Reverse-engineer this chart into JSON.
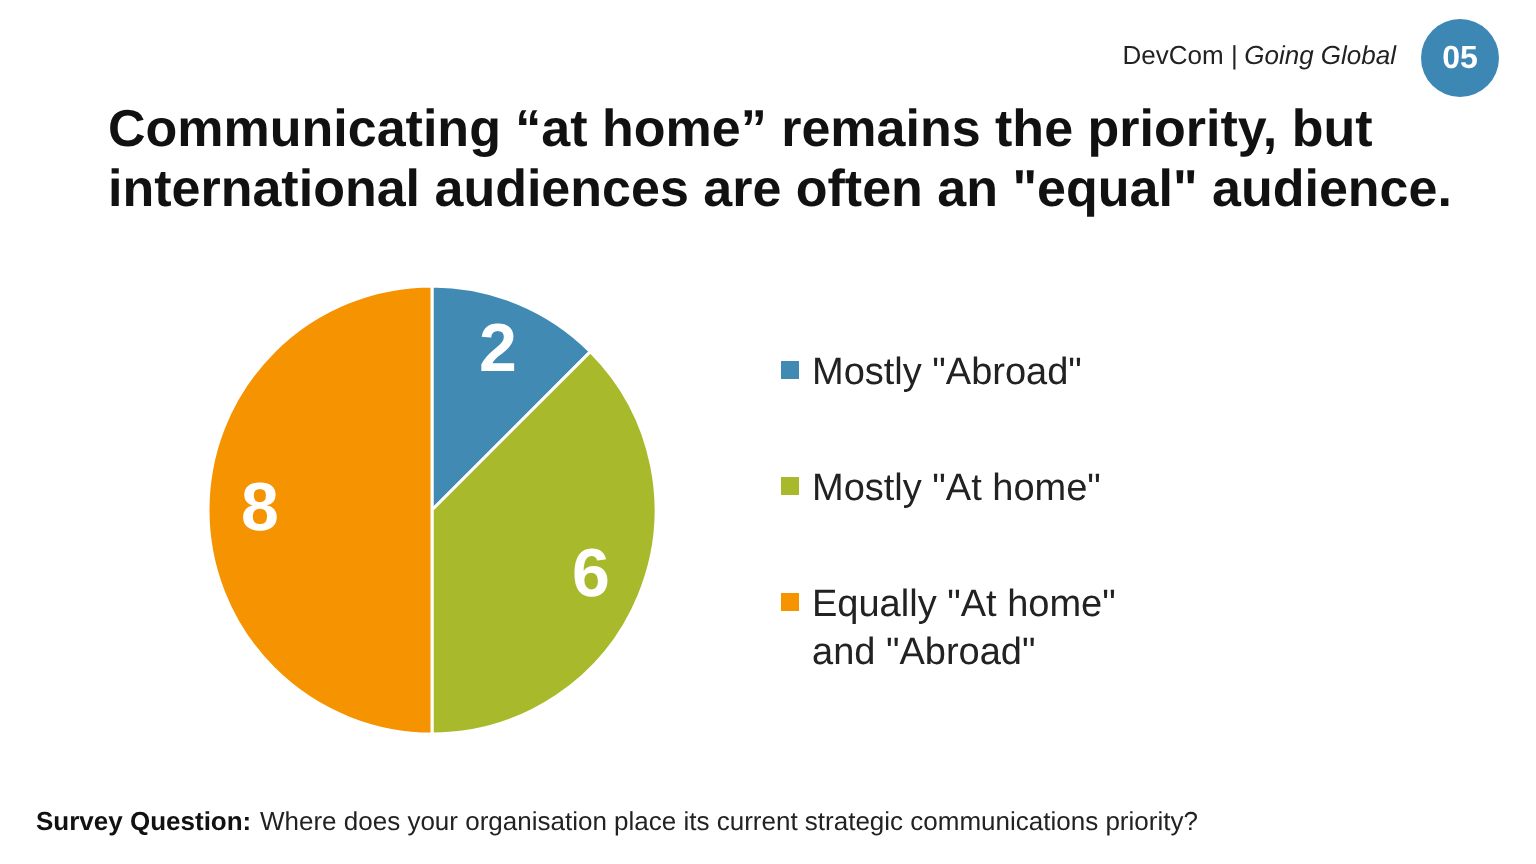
{
  "chart_data": {
    "type": "pie",
    "title": "Communicating “at home” remains the priority, but international audiences are often an \"equal\" audience.",
    "categories": [
      "Mostly \"Abroad\"",
      "Mostly \"At home\"",
      "Equally \"At home\" and \"Abroad\""
    ],
    "values": [
      2,
      6,
      8
    ],
    "colors": [
      "#418ab3",
      "#a9b92c",
      "#f59300"
    ],
    "data_labels": true,
    "legend": "right",
    "annotations": [
      "DevCom |",
      "Going Global",
      "05",
      "Survey Question:",
      "Where does your organisation place its current strategic communications priority?"
    ]
  }
}
